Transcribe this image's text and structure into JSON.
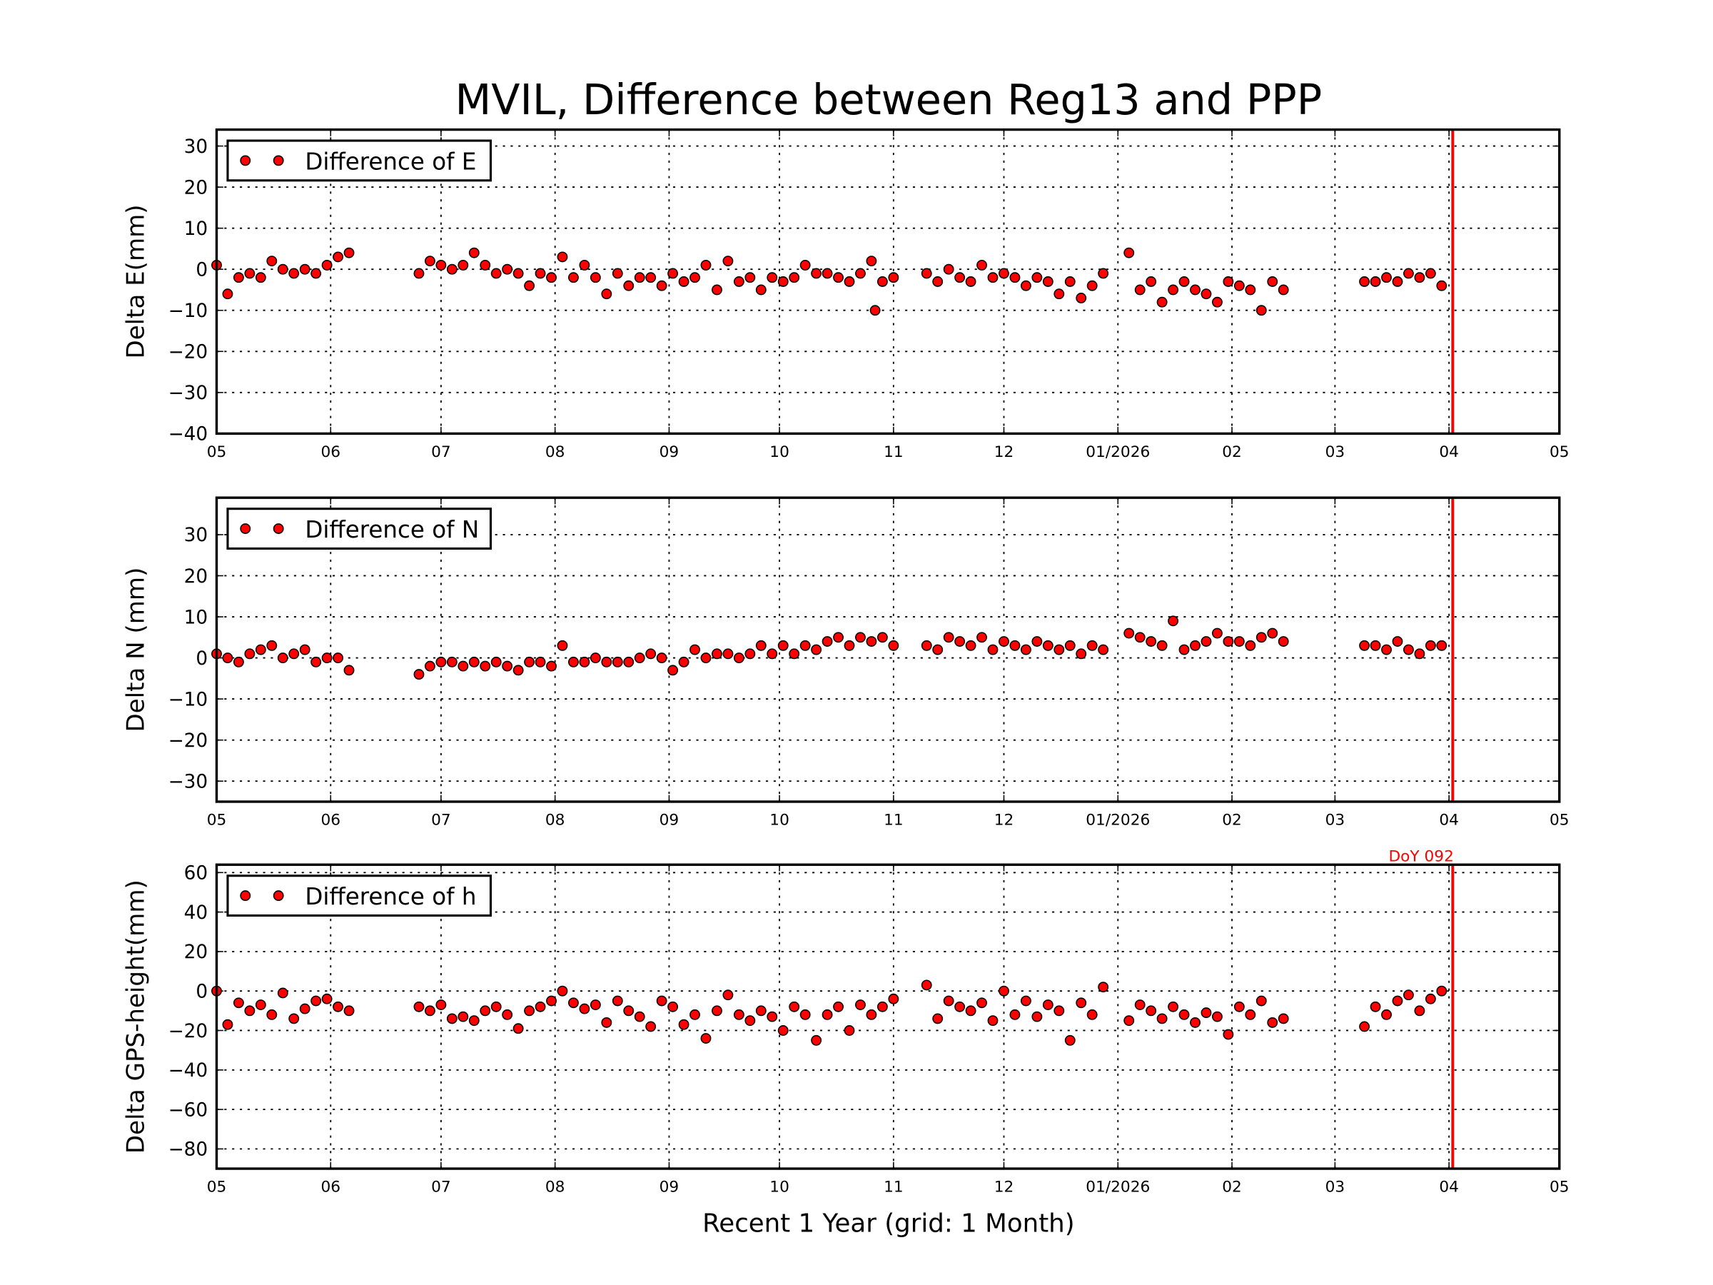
{
  "chart_data": {
    "type": "scatter",
    "title": "MVIL, Difference between Reg13 and PPP",
    "xlabel": "Recent 1 Year (grid: 1 Month)",
    "xlim": [
      "2025-05-01",
      "2026-05-01"
    ],
    "xticks": [
      {
        "date": "2025-05-01",
        "label": "05"
      },
      {
        "date": "2025-06-01",
        "label": "06"
      },
      {
        "date": "2025-07-01",
        "label": "07"
      },
      {
        "date": "2025-08-01",
        "label": "08"
      },
      {
        "date": "2025-09-01",
        "label": "09"
      },
      {
        "date": "2025-10-01",
        "label": "10"
      },
      {
        "date": "2025-11-01",
        "label": "11"
      },
      {
        "date": "2025-12-01",
        "label": "12"
      },
      {
        "date": "2026-01-01",
        "label": "01/2026"
      },
      {
        "date": "2026-02-01",
        "label": "02"
      },
      {
        "date": "2026-03-01",
        "label": "03"
      },
      {
        "date": "2026-04-01",
        "label": "04"
      },
      {
        "date": "2026-05-01",
        "label": "05"
      }
    ],
    "grid": true,
    "marker_color": "#ff0000",
    "reference_line": {
      "date": "2026-04-02",
      "label": "DoY 092",
      "color": "#ff0000"
    },
    "x": [
      "2025-05-01",
      "2025-05-04",
      "2025-05-07",
      "2025-05-10",
      "2025-05-13",
      "2025-05-16",
      "2025-05-19",
      "2025-05-22",
      "2025-05-25",
      "2025-05-28",
      "2025-05-31",
      "2025-06-03",
      "2025-06-06",
      "2025-06-25",
      "2025-06-28",
      "2025-07-01",
      "2025-07-04",
      "2025-07-07",
      "2025-07-10",
      "2025-07-13",
      "2025-07-16",
      "2025-07-19",
      "2025-07-22",
      "2025-07-25",
      "2025-07-28",
      "2025-07-31",
      "2025-08-03",
      "2025-08-06",
      "2025-08-09",
      "2025-08-12",
      "2025-08-15",
      "2025-08-18",
      "2025-08-21",
      "2025-08-24",
      "2025-08-27",
      "2025-08-30",
      "2025-09-02",
      "2025-09-05",
      "2025-09-08",
      "2025-09-11",
      "2025-09-14",
      "2025-09-17",
      "2025-09-20",
      "2025-09-23",
      "2025-09-26",
      "2025-09-29",
      "2025-10-02",
      "2025-10-05",
      "2025-10-08",
      "2025-10-11",
      "2025-10-14",
      "2025-10-17",
      "2025-10-20",
      "2025-10-23",
      "2025-10-26",
      "2025-10-29",
      "2025-11-01",
      "2025-11-10",
      "2025-11-13",
      "2025-11-16",
      "2025-11-19",
      "2025-11-22",
      "2025-11-25",
      "2025-11-28",
      "2025-12-01",
      "2025-12-04",
      "2025-12-07",
      "2025-12-10",
      "2025-12-13",
      "2025-12-16",
      "2025-12-19",
      "2025-12-22",
      "2025-12-25",
      "2025-12-28",
      "2026-01-04",
      "2026-01-07",
      "2026-01-10",
      "2026-01-13",
      "2026-01-16",
      "2026-01-19",
      "2026-01-22",
      "2026-01-25",
      "2026-01-28",
      "2026-01-31",
      "2026-02-03",
      "2026-02-06",
      "2026-02-09",
      "2026-02-12",
      "2026-02-15",
      "2026-03-09",
      "2026-03-12",
      "2026-03-15",
      "2026-03-18",
      "2026-03-21",
      "2026-03-24",
      "2026-03-27",
      "2026-03-30"
    ],
    "panels": [
      {
        "ylabel": "Delta E(mm)",
        "ylim": [
          -40,
          34
        ],
        "yticks": [
          -40,
          -30,
          -20,
          -10,
          0,
          10,
          20,
          30
        ],
        "legend": "Difference of E",
        "legend_position": "top-left",
        "values": [
          1,
          -6,
          -2,
          -1,
          -2,
          2,
          0,
          -1,
          0,
          -1,
          1,
          3,
          4,
          -1,
          2,
          1,
          0,
          1,
          4,
          1,
          -1,
          0,
          -1,
          -4,
          -1,
          -2,
          3,
          -2,
          1,
          -2,
          -6,
          -1,
          -4,
          -2,
          -2,
          -4,
          -1,
          -3,
          -2,
          1,
          -5,
          2,
          -3,
          -2,
          -5,
          -2,
          -3,
          -2,
          1,
          -1,
          -1,
          -2,
          -3,
          -1,
          2,
          -3,
          -2,
          -1,
          -3,
          0,
          -2,
          -3,
          1,
          -2,
          -1,
          -2,
          -4,
          -2,
          -3,
          -6,
          -3,
          -7,
          -4,
          -1,
          4,
          -5,
          -3,
          -8,
          -5,
          -3,
          -5,
          -6,
          -8,
          -3,
          -4,
          -5,
          -10,
          -3,
          -5,
          -3,
          -3,
          -2,
          -3,
          -1,
          -2,
          -1,
          -4
        ],
        "values_min_outlier": {
          "date": "2025-10-27",
          "value": -10
        }
      },
      {
        "ylabel": "Delta N (mm)",
        "ylim": [
          -35,
          39
        ],
        "yticks": [
          -30,
          -20,
          -10,
          0,
          10,
          20,
          30
        ],
        "legend": "Difference of N",
        "legend_position": "top-left",
        "values": [
          1,
          0,
          -1,
          1,
          2,
          3,
          0,
          1,
          2,
          -1,
          0,
          0,
          -3,
          -4,
          -2,
          -1,
          -1,
          -2,
          -1,
          -2,
          -1,
          -2,
          -3,
          -1,
          -1,
          -2,
          3,
          -1,
          -1,
          0,
          -1,
          -1,
          -1,
          0,
          1,
          0,
          -3,
          -1,
          2,
          0,
          1,
          1,
          0,
          1,
          3,
          1,
          3,
          1,
          3,
          2,
          4,
          5,
          3,
          5,
          4,
          5,
          3,
          3,
          2,
          5,
          4,
          3,
          5,
          2,
          4,
          3,
          2,
          4,
          3,
          2,
          3,
          1,
          3,
          2,
          6,
          5,
          4,
          3,
          9,
          2,
          3,
          4,
          6,
          4,
          4,
          3,
          5,
          6,
          4,
          3,
          3,
          2,
          4,
          2,
          1,
          3,
          3
        ]
      },
      {
        "ylabel": "Delta GPS-height(mm)",
        "ylim": [
          -90,
          64
        ],
        "yticks": [
          -80,
          -60,
          -40,
          -20,
          0,
          20,
          40,
          60
        ],
        "legend": "Difference of h",
        "legend_position": "top-left",
        "values": [
          0,
          -17,
          -6,
          -10,
          -7,
          -12,
          -1,
          -14,
          -9,
          -5,
          -4,
          -8,
          -10,
          -8,
          -10,
          -7,
          -14,
          -13,
          -15,
          -10,
          -8,
          -12,
          -19,
          -10,
          -8,
          -5,
          0,
          -6,
          -9,
          -7,
          -16,
          -5,
          -10,
          -13,
          -18,
          -5,
          -8,
          -17,
          -12,
          -24,
          -10,
          -2,
          -12,
          -15,
          -10,
          -13,
          -20,
          -8,
          -12,
          -25,
          -12,
          -8,
          -20,
          -7,
          -12,
          -8,
          -4,
          3,
          -14,
          -5,
          -8,
          -10,
          -6,
          -15,
          0,
          -12,
          -5,
          -13,
          -7,
          -10,
          -25,
          -6,
          -12,
          2,
          -15,
          -7,
          -10,
          -14,
          -8,
          -12,
          -16,
          -11,
          -13,
          -22,
          -8,
          -12,
          -5,
          -16,
          -14,
          -18,
          -8,
          -12,
          -5,
          -2,
          -10,
          -4,
          0
        ]
      }
    ]
  }
}
